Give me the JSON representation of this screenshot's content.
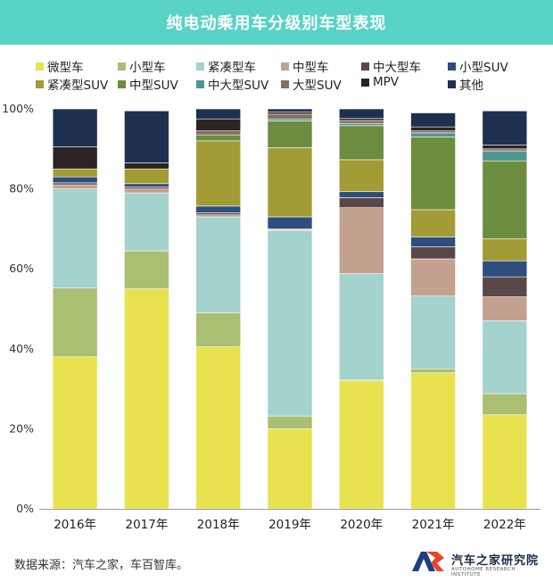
{
  "chart_data": {
    "type": "bar",
    "stacked": true,
    "title": "纯电动乘用车分级别车型表现",
    "categories": [
      "2016年",
      "2017年",
      "2018年",
      "2019年",
      "2020年",
      "2021年",
      "2022年"
    ],
    "ylim": [
      0,
      100
    ],
    "yticks": [
      "0%",
      "20%",
      "40%",
      "60%",
      "80%",
      "100%"
    ],
    "ytick_values": [
      0,
      20,
      40,
      60,
      80,
      100
    ],
    "xlabel": "",
    "ylabel": "",
    "series": [
      {
        "name": "微型车",
        "color": "#e8e24f",
        "values": [
          38,
          55,
          40.5,
          20,
          32,
          34,
          23.5
        ]
      },
      {
        "name": "小型车",
        "color": "#a9bf72",
        "values": [
          17.2,
          9.5,
          8.5,
          3.2,
          0.3,
          1,
          5.3
        ]
      },
      {
        "name": "紧凑型车",
        "color": "#a4d2cd",
        "values": [
          24.8,
          14.5,
          24,
          46.3,
          26.5,
          18.2,
          18.2
        ]
      },
      {
        "name": "中型车",
        "color": "#c4a08e",
        "values": [
          1,
          1,
          0.5,
          0.3,
          16.5,
          9.3,
          6
        ]
      },
      {
        "name": "中大型车",
        "color": "#5a4747",
        "values": [
          0.5,
          0.5,
          0.5,
          0.2,
          2.5,
          3,
          5
        ]
      },
      {
        "name": "小型SUV",
        "color": "#2e4e7e",
        "values": [
          1.5,
          0.8,
          1.7,
          3,
          1.5,
          2.5,
          4
        ]
      },
      {
        "name": "紧凑型SUV",
        "color": "#a39c36",
        "values": [
          2,
          3.7,
          16.3,
          17.3,
          8,
          6.8,
          5.5
        ]
      },
      {
        "name": "中型SUV",
        "color": "#6c8c40",
        "values": [
          0,
          0,
          1.5,
          6.7,
          8.5,
          18.2,
          19.5
        ]
      },
      {
        "name": "中大型SUV",
        "color": "#4f9691",
        "values": [
          0,
          0,
          0,
          0.5,
          0.5,
          1,
          2.5
        ]
      },
      {
        "name": "大型SUV",
        "color": "#8a6d5c",
        "values": [
          0,
          0,
          1,
          1.2,
          0.8,
          0.5,
          0.5
        ]
      },
      {
        "name": "MPV",
        "color": "#2c2424",
        "values": [
          5.5,
          1.5,
          3,
          0.5,
          0.5,
          1,
          1
        ]
      },
      {
        "name": "其他",
        "color": "#1d3050",
        "values": [
          9.5,
          13,
          2.5,
          0.8,
          2.4,
          3.5,
          8.5
        ]
      }
    ]
  },
  "footer": {
    "source": "数据来源：汽车之家，车百智库。",
    "brand_name": "汽车之家研究院",
    "brand_sub": "AUTOHOME RESEARCH INSTITUTE"
  }
}
